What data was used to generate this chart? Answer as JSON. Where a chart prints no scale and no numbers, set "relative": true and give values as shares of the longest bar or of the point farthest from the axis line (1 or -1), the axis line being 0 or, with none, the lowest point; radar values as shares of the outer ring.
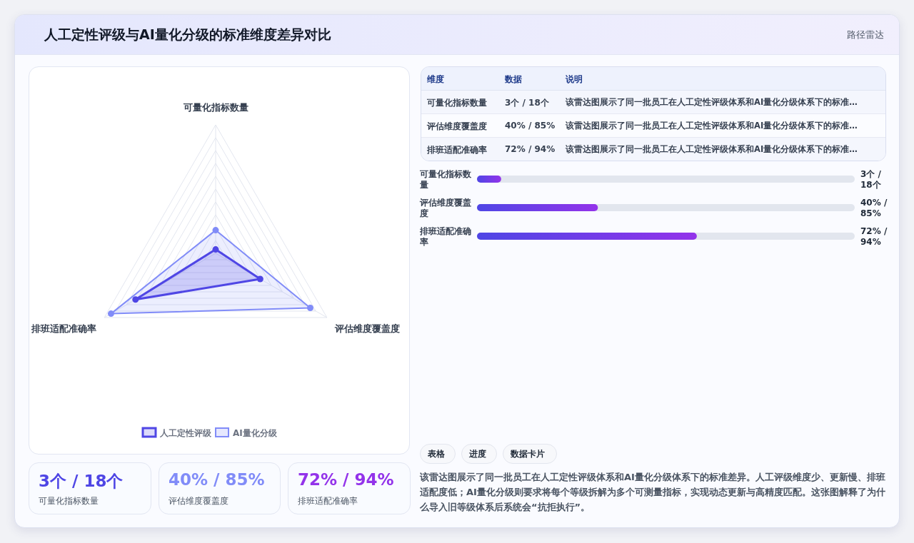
{
  "chart_data": [
    {
      "type": "other",
      "title": "人工定性评级与AI量化分级的标准维度差异对比",
      "subtitle": "路径雷达"
    },
    {
      "type": "radar",
      "relative": true,
      "categories": [
        "可量化指标数量",
        "评估维度覆盖度",
        "排班适配准确率"
      ],
      "grid": true,
      "legend": "bottom",
      "marker": "circle",
      "series": [
        {
          "name": "人工定性评级",
          "color": "#4f46e5",
          "values": [
            0.03,
            0.4,
            0.72
          ]
        },
        {
          "name": "AI量化分级",
          "color": "#818cf8",
          "values": [
            0.18,
            0.85,
            0.94
          ]
        }
      ]
    },
    {
      "type": "other",
      "categories": [
        "可量化指标数量",
        "评估维度覆盖度",
        "排班适配准确率"
      ],
      "value_labels": [
        "3个 / 18个",
        "40% / 85%",
        "72% / 94%"
      ],
      "annotations": [
        "维度",
        "数据",
        "说明",
        "该雷达图展示了同一批员工在人工定性评级体系和AI量化分级体系下的标准…",
        "该雷达图展示了同一批员工在人工定性评级体系和AI量化分级体系下的标准…",
        "该雷达图展示了同一批员工在人工定性评级体系和AI量化分级体系下的标准…"
      ]
    },
    {
      "type": "bar",
      "orientation": "horizontal",
      "relative": true,
      "categories": [
        "可量化指标数量",
        "评估维度覆盖度",
        "排班适配准确率"
      ],
      "values": [
        0.11,
        0.55,
        1
      ],
      "color": "#9333ea",
      "annotations": [
        "3个 / 18个",
        "40% / 85%",
        "72% / 94%"
      ]
    },
    {
      "type": "other",
      "categories": [
        "可量化指标数量",
        "评估维度覆盖度",
        "排班适配准确率"
      ],
      "value_labels": [
        "3个 / 18个",
        "40% / 85%",
        "72% / 94%"
      ]
    },
    {
      "type": "other",
      "annotations": [
        "表格",
        "进度",
        "数据卡片",
        "该雷达图展示了同一批员工在人工定性评级体系和AI量化分级体系下的标准差异。人工评级维度少、更新慢、排班适配度低；AI量化分级则要求将每个等级拆解为多个可测量指标，实现动态更新与高精度匹配。这张图解释了为什么导入旧等级体系后系统会“抗拒执行”。"
      ]
    }
  ]
}
